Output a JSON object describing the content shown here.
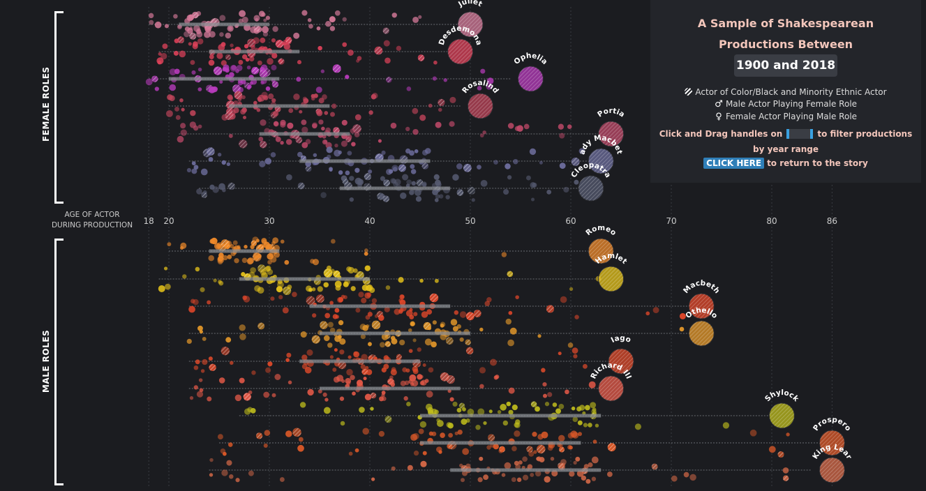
{
  "chart_data": {
    "type": "scatter",
    "x_ticks": [
      18,
      20,
      30,
      40,
      50,
      60,
      70,
      80,
      86
    ],
    "xlim": [
      17,
      92
    ],
    "axis_caption_line1": "AGE OF ACTOR",
    "axis_caption_line2": "DURING PRODUCTION",
    "groups": [
      {
        "label": "FEMALE ROLES",
        "roles": [
          {
            "name": "Juliet",
            "color": "#d77a9a",
            "range": [
              18,
              49
            ],
            "iqr": [
              21,
              30
            ],
            "median": 25,
            "bubble_age": 50
          },
          {
            "name": "Desdemona",
            "color": "#e0425a",
            "range": [
              19,
              48
            ],
            "iqr": [
              24,
              33
            ],
            "median": 28,
            "bubble_age": 49
          },
          {
            "name": "Ophelia",
            "color": "#b93bbd",
            "range": [
              18,
              54
            ],
            "iqr": [
              20,
              31
            ],
            "median": 24,
            "bubble_age": 56
          },
          {
            "name": "Rosalind",
            "color": "#c0445a",
            "range": [
              20,
              49
            ],
            "iqr": [
              26,
              36
            ],
            "median": 31,
            "bubble_age": 51
          },
          {
            "name": "Portia",
            "color": "#c24a6a",
            "range": [
              21,
              63
            ],
            "iqr": [
              29,
              38
            ],
            "median": 33,
            "bubble_age": 64
          },
          {
            "name": "Lady Macbeth",
            "color": "#6e6e9e",
            "range": [
              22,
              62
            ],
            "iqr": [
              33,
              46
            ],
            "median": 40,
            "bubble_age": 63
          },
          {
            "name": "Cleopatra",
            "color": "#565a70",
            "range": [
              23,
              61
            ],
            "iqr": [
              37,
              48
            ],
            "median": 43,
            "bubble_age": 62
          }
        ]
      },
      {
        "label": "MALE ROLES",
        "roles": [
          {
            "name": "Romeo",
            "color": "#f08a2a",
            "range": [
              20,
              62
            ],
            "iqr": [
              24,
              31
            ],
            "median": 27,
            "bubble_age": 63
          },
          {
            "name": "Hamlet",
            "color": "#e8c41a",
            "range": [
              19,
              63
            ],
            "iqr": [
              27,
              40
            ],
            "median": 33,
            "bubble_age": 64
          },
          {
            "name": "Macbeth",
            "color": "#e5482a",
            "range": [
              22,
              72
            ],
            "iqr": [
              34,
              48
            ],
            "median": 41,
            "bubble_age": 73
          },
          {
            "name": "Othello",
            "color": "#e89a2a",
            "range": [
              22,
              72
            ],
            "iqr": [
              35,
              50
            ],
            "median": 42,
            "bubble_age": 73
          },
          {
            "name": "Iago",
            "color": "#e04a2a",
            "range": [
              22,
              64
            ],
            "iqr": [
              33,
              45
            ],
            "median": 38,
            "bubble_age": 65
          },
          {
            "name": "Richard III",
            "color": "#e85a48",
            "range": [
              22,
              63
            ],
            "iqr": [
              35,
              49
            ],
            "median": 42,
            "bubble_age": 64
          },
          {
            "name": "Shylock",
            "color": "#c0bd1c",
            "range": [
              27,
              80
            ],
            "iqr": [
              45,
              63
            ],
            "median": 53,
            "bubble_age": 81
          },
          {
            "name": "Prospero",
            "color": "#e05a28",
            "range": [
              25,
              85
            ],
            "iqr": [
              45,
              61
            ],
            "median": 52,
            "bubble_age": 86
          },
          {
            "name": "King Lear",
            "color": "#d86a48",
            "range": [
              24,
              84
            ],
            "iqr": [
              48,
              63
            ],
            "median": 56,
            "bubble_age": 86
          }
        ]
      }
    ]
  },
  "panel": {
    "title_line1": "A Sample of Shakespearean",
    "title_line2": "Productions Between",
    "year_range": "1900 and 2018",
    "legend_hatch": "Actor of Color/Black and Minority Ethnic Actor",
    "legend_male": "Male Actor Playing Female Role",
    "legend_female": "Female Actor Playing Male Role",
    "filter_prefix": "Click and Drag handles on",
    "filter_suffix": "to filter productions",
    "filter_line2": "by year range",
    "click_here": "CLICK HERE",
    "return_text": "to return to the story"
  },
  "colors": {
    "background": "#1b1c20",
    "panel": "#23252a",
    "accent": "#f3c6bb",
    "button": "#2f7fb8"
  }
}
